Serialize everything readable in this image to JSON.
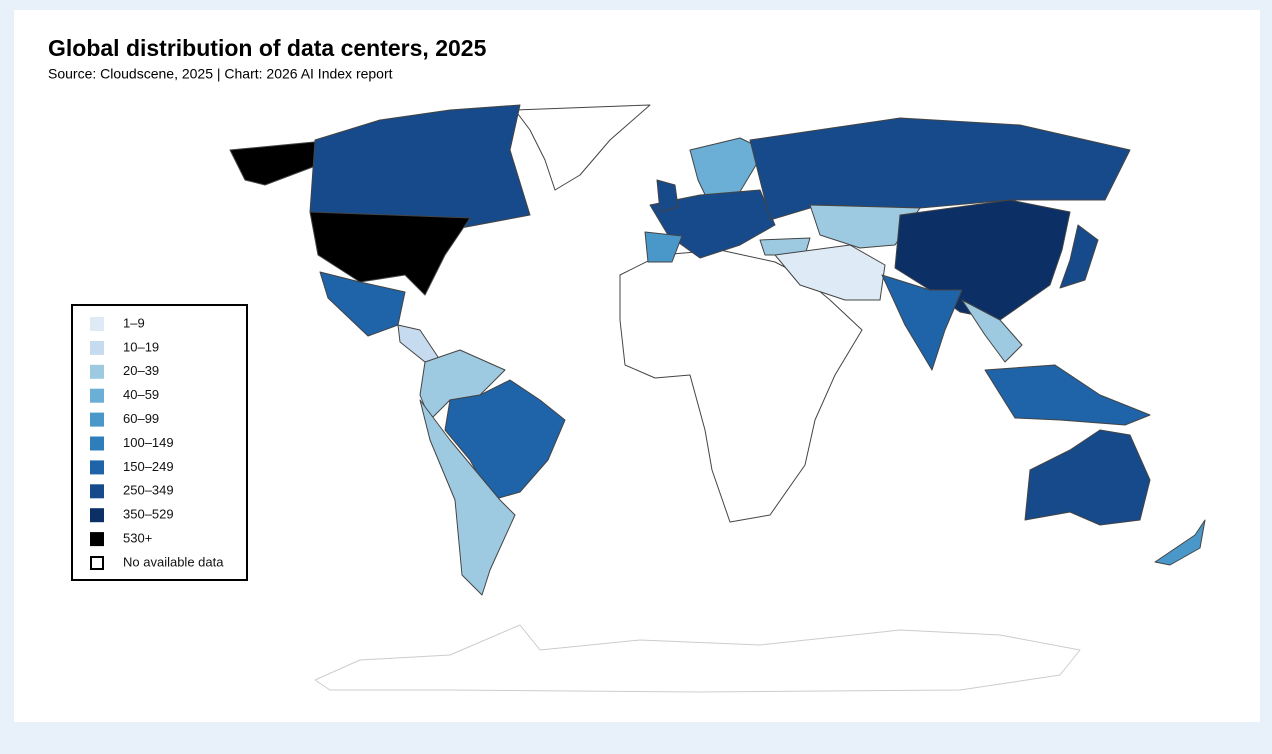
{
  "header": {
    "title": "Global distribution of data centers, 2025",
    "subtitle": "Source: Cloudscene, 2025 | Chart: 2026 AI Index report"
  },
  "legend": {
    "items": [
      {
        "label": "1–9",
        "color": "#deebf7"
      },
      {
        "label": "10–19",
        "color": "#c6dbef"
      },
      {
        "label": "20–39",
        "color": "#9ecae1"
      },
      {
        "label": "40–59",
        "color": "#6baed6"
      },
      {
        "label": "60–99",
        "color": "#4a98c9"
      },
      {
        "label": "100–149",
        "color": "#2e7ebc"
      },
      {
        "label": "150–249",
        "color": "#1f63a8"
      },
      {
        "label": "250–349",
        "color": "#174a8b"
      },
      {
        "label": "350–529",
        "color": "#0c2f66"
      },
      {
        "label": "530+",
        "color": "#000000"
      },
      {
        "label": "No available data",
        "color": "#ffffff"
      }
    ]
  }
}
